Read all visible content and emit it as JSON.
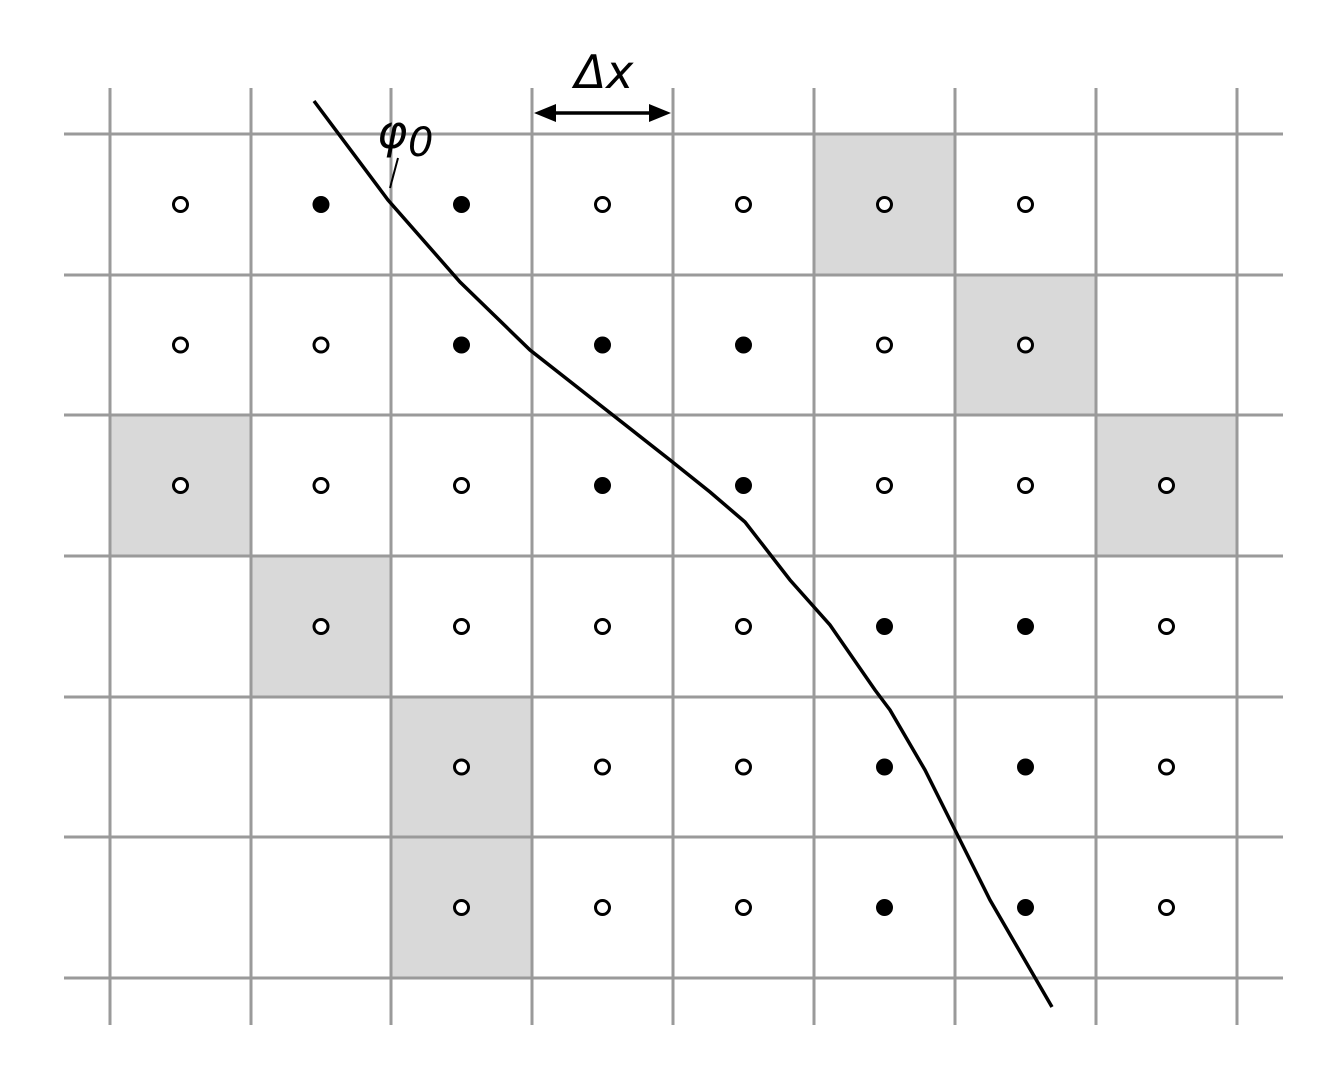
{
  "labels": {
    "delta_x": "Δx",
    "phi": "φ",
    "phi_subscript": "0"
  }
}
